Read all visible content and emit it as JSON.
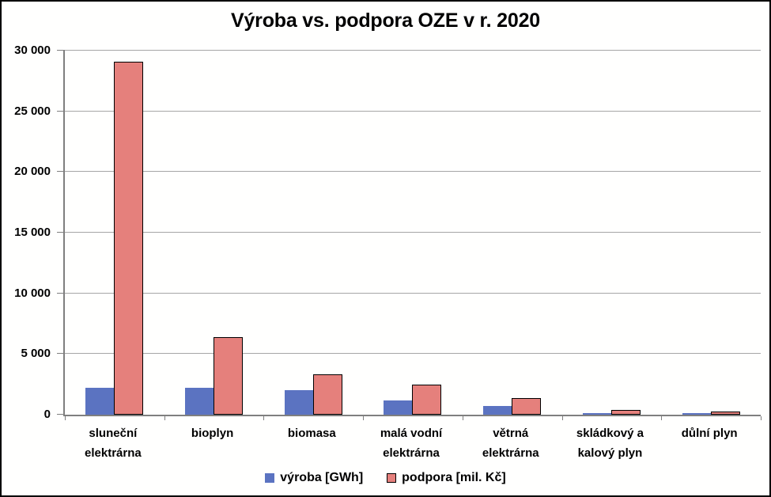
{
  "title": "Výroba vs. podpora OZE v r. 2020",
  "colors": {
    "vyroba_fill": "#5B73C1",
    "podpora_fill": "#E5807C",
    "podpora_border": "#000000",
    "gridline": "#A6A6A6",
    "axis": "#7F7F7F",
    "background": "#FFFFFE",
    "text": "#000000"
  },
  "legend": [
    {
      "label": "výroba [GWh]",
      "series": "vyroba"
    },
    {
      "label": "podpora [mil. Kč]",
      "series": "podpora"
    }
  ],
  "y_axis": {
    "tick_labels": [
      "0",
      "5 000",
      "10 000",
      "15 000",
      "20 000",
      "25 000",
      "30 000"
    ],
    "tick_values": [
      0,
      5000,
      10000,
      15000,
      20000,
      25000,
      30000
    ]
  },
  "chart_data": {
    "type": "bar",
    "title": "Výroba vs. podpora OZE v r. 2020",
    "categories": [
      "sluneční elektrárna",
      "bioplyn",
      "biomasa",
      "malá vodní elektrárna",
      "větrná elektrárna",
      "skládkový a kalový plyn",
      "důlní plyn"
    ],
    "category_label_lines": [
      [
        "sluneční",
        "elektrárna"
      ],
      [
        "bioplyn"
      ],
      [
        "biomasa"
      ],
      [
        "malá vodní",
        "elektrárna"
      ],
      [
        "větrná",
        "elektrárna"
      ],
      [
        "skládkový a",
        "kalový plyn"
      ],
      [
        "důlní plyn"
      ]
    ],
    "series": [
      {
        "name": "výroba [GWh]",
        "key": "vyroba",
        "values": [
          2200,
          2250,
          2000,
          1150,
          700,
          130,
          150
        ]
      },
      {
        "name": "podpora [mil. Kč]",
        "key": "podpora",
        "values": [
          29100,
          6400,
          3300,
          2450,
          1400,
          400,
          250
        ]
      }
    ],
    "xlabel": "",
    "ylabel": "",
    "ylim": [
      0,
      30000
    ],
    "ytick_step": 5000,
    "grid": "horizontal",
    "legend_position": "bottom"
  }
}
